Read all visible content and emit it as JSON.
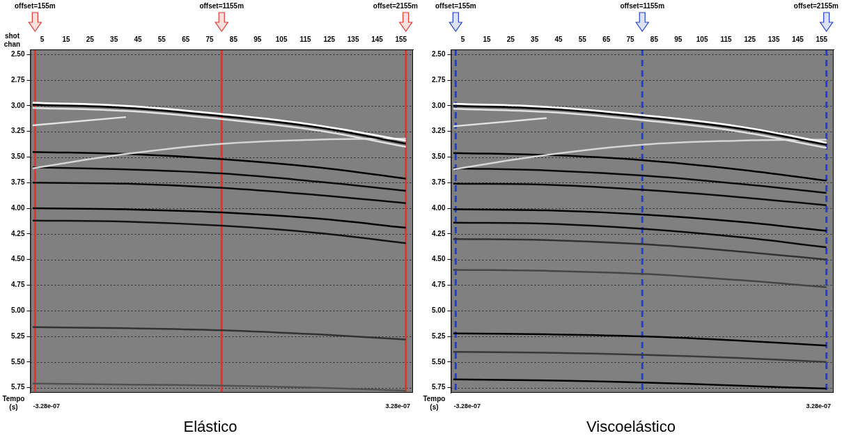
{
  "chart_data": [
    {
      "type": "line",
      "title": "Elástico",
      "xlabel": "shot chan",
      "ylabel": "Tempo (s)",
      "x": [
        1,
        40,
        80,
        120,
        157
      ],
      "xlim": [
        0,
        160
      ],
      "xticks": [
        5,
        15,
        25,
        35,
        45,
        55,
        65,
        75,
        85,
        95,
        105,
        115,
        125,
        135,
        145,
        155
      ],
      "ylim": [
        2.45,
        5.8
      ],
      "yticks": [
        {
          "value": 2.5,
          "label": "2.50"
        },
        {
          "value": 2.75,
          "label": "2.75"
        },
        {
          "value": 3,
          "label": "3.00"
        },
        {
          "value": 3.25,
          "label": "3.25"
        },
        {
          "value": 3.5,
          "label": "3.50"
        },
        {
          "value": 3.75,
          "label": "3.75"
        },
        {
          "value": 4,
          "label": "4.00"
        },
        {
          "value": 4.25,
          "label": "4.25"
        },
        {
          "value": 4.5,
          "label": "4.50"
        },
        {
          "value": 4.75,
          "label": "4.75"
        },
        {
          "value": 5,
          "label": "5.00"
        },
        {
          "value": 5.25,
          "label": "5.25"
        },
        {
          "value": 5.5,
          "label": "5.50"
        },
        {
          "value": 5.75,
          "label": "5.75"
        }
      ],
      "grid": true,
      "colorbar": {
        "range": [
          -3.28e-07,
          3.28e-07
        ],
        "ticks": [
          {
            "value": -3.28e-07,
            "label": "-3.28e-07"
          },
          {
            "value": 3.28e-07,
            "label": "3.28e-07"
          }
        ]
      },
      "series": [
        {
          "values": [
            2.97,
            3.0,
            3.08,
            3.19,
            3.34
          ],
          "amplitude": 3.28e-07
        },
        {
          "values": [
            2.99,
            3.02,
            3.1,
            3.21,
            3.37
          ],
          "amplitude": -3.28e-07
        },
        {
          "values": [
            3.02,
            3.05,
            3.13,
            3.24,
            3.4
          ],
          "amplitude": 2.5e-07
        },
        {
          "values": [
            3.19,
            3.11,
            null,
            null,
            null
          ],
          "amplitude": 2.5e-07
        },
        {
          "values": [
            3.61,
            3.47,
            3.37,
            3.33,
            3.32
          ],
          "amplitude": 2.2e-07
        },
        {
          "values": [
            3.45,
            3.47,
            3.52,
            3.6,
            3.71
          ],
          "amplitude": -3.28e-07
        },
        {
          "values": [
            3.6,
            3.62,
            3.66,
            3.74,
            3.83
          ],
          "amplitude": -3e-07
        },
        {
          "values": [
            3.75,
            3.76,
            3.8,
            3.87,
            3.95
          ],
          "amplitude": -3e-07
        },
        {
          "values": [
            4.0,
            4.01,
            4.04,
            4.1,
            4.19
          ],
          "amplitude": -3.28e-07
        },
        {
          "values": [
            4.12,
            4.13,
            4.17,
            4.24,
            4.34
          ],
          "amplitude": -2.8e-07
        },
        {
          "values": [
            5.16,
            5.17,
            5.19,
            5.23,
            5.28
          ],
          "amplitude": -2e-07
        },
        {
          "values": [
            5.71,
            5.72,
            5.73,
            5.75,
            5.78
          ],
          "amplitude": -1.2e-07
        },
        {
          "name": "offset=155m",
          "type": "vline",
          "x": 2,
          "color": "#e8322a",
          "line_style": "solid"
        },
        {
          "name": "offset=1155m",
          "type": "vline",
          "x": 80,
          "color": "#e8322a",
          "line_style": "solid"
        },
        {
          "name": "offset=2155m",
          "type": "vline",
          "x": 157,
          "color": "#e8322a",
          "line_style": "solid"
        }
      ]
    },
    {
      "type": "line",
      "title": "Viscoelástico",
      "ylabel": "Tempo (s)",
      "x": [
        1,
        40,
        80,
        120,
        157
      ],
      "xlim": [
        0,
        160
      ],
      "xticks": [
        5,
        15,
        25,
        35,
        45,
        55,
        65,
        75,
        85,
        95,
        105,
        115,
        125,
        135,
        145,
        155
      ],
      "ylim": [
        2.45,
        5.8
      ],
      "yticks": [
        {
          "value": 2.5,
          "label": "2.50"
        },
        {
          "value": 2.75,
          "label": "2.75"
        },
        {
          "value": 3,
          "label": "3.00"
        },
        {
          "value": 3.25,
          "label": "3.25"
        },
        {
          "value": 3.5,
          "label": "3.50"
        },
        {
          "value": 3.75,
          "label": "3.75"
        },
        {
          "value": 4,
          "label": "4.00"
        },
        {
          "value": 4.25,
          "label": "4.25"
        },
        {
          "value": 4.5,
          "label": "4.50"
        },
        {
          "value": 4.75,
          "label": "4.75"
        },
        {
          "value": 5,
          "label": "5.00"
        },
        {
          "value": 5.25,
          "label": "5.25"
        },
        {
          "value": 5.5,
          "label": "5.50"
        },
        {
          "value": 5.75,
          "label": "5.75"
        }
      ],
      "grid": true,
      "colorbar": {
        "range": [
          -3.28e-07,
          3.28e-07
        ],
        "ticks": [
          {
            "value": -3.28e-07,
            "label": "-3.28e-07"
          },
          {
            "value": 3.28e-07,
            "label": "3.28e-07"
          }
        ]
      },
      "series": [
        {
          "values": [
            2.98,
            3.01,
            3.09,
            3.2,
            3.36
          ],
          "amplitude": 3.28e-07
        },
        {
          "values": [
            3.0,
            3.03,
            3.11,
            3.22,
            3.38
          ],
          "amplitude": -3.28e-07
        },
        {
          "values": [
            3.03,
            3.06,
            3.14,
            3.25,
            3.41
          ],
          "amplitude": 2.5e-07
        },
        {
          "values": [
            3.2,
            3.12,
            null,
            null,
            null
          ],
          "amplitude": 2.5e-07
        },
        {
          "values": [
            3.62,
            3.48,
            3.38,
            3.34,
            3.33
          ],
          "amplitude": 2.2e-07
        },
        {
          "values": [
            3.46,
            3.48,
            3.53,
            3.62,
            3.73
          ],
          "amplitude": -3.28e-07
        },
        {
          "values": [
            3.61,
            3.63,
            3.68,
            3.76,
            3.85
          ],
          "amplitude": -3e-07
        },
        {
          "values": [
            3.76,
            3.77,
            3.82,
            3.89,
            3.97
          ],
          "amplitude": -3e-07
        },
        {
          "values": [
            4.01,
            4.02,
            4.06,
            4.13,
            4.22
          ],
          "amplitude": -3.28e-07
        },
        {
          "values": [
            4.14,
            4.15,
            4.2,
            4.28,
            4.38
          ],
          "amplitude": -3e-07
        },
        {
          "values": [
            4.3,
            4.31,
            4.35,
            4.42,
            4.5
          ],
          "amplitude": -2e-07
        },
        {
          "values": [
            4.6,
            4.61,
            4.64,
            4.7,
            4.77
          ],
          "amplitude": -1.5e-07
        },
        {
          "values": [
            5.22,
            5.23,
            5.25,
            5.29,
            5.34
          ],
          "amplitude": -3.28e-07
        },
        {
          "values": [
            5.4,
            5.41,
            5.43,
            5.46,
            5.5
          ],
          "amplitude": -1.8e-07
        },
        {
          "values": [
            5.67,
            5.68,
            5.7,
            5.73,
            5.76
          ],
          "amplitude": -3.28e-07
        },
        {
          "name": "offset=155m",
          "type": "vline",
          "x": 2,
          "color": "#1f3fd6",
          "line_style": "dashed"
        },
        {
          "name": "offset=1155m",
          "type": "vline",
          "x": 80,
          "color": "#1f3fd6",
          "line_style": "dashed"
        },
        {
          "name": "offset=2155m",
          "type": "vline",
          "x": 157,
          "color": "#1f3fd6",
          "line_style": "dashed"
        }
      ]
    }
  ]
}
